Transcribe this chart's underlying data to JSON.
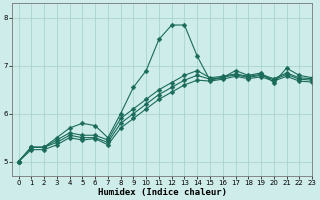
{
  "xlabel": "Humidex (Indice chaleur)",
  "bg_color": "#ceecea",
  "grid_color": "#a8d5d0",
  "line_color": "#1a6b5a",
  "xlim": [
    -0.5,
    23
  ],
  "ylim": [
    4.7,
    8.3
  ],
  "yticks": [
    5,
    6,
    7,
    8
  ],
  "xticks": [
    0,
    1,
    2,
    3,
    4,
    5,
    6,
    7,
    8,
    9,
    10,
    11,
    12,
    13,
    14,
    15,
    16,
    17,
    18,
    19,
    20,
    21,
    22,
    23
  ],
  "series": [
    [
      5.0,
      5.3,
      5.3,
      5.5,
      5.7,
      5.8,
      5.75,
      5.5,
      6.0,
      6.55,
      6.9,
      7.55,
      7.85,
      7.85,
      7.2,
      6.7,
      6.75,
      6.9,
      6.8,
      6.85,
      6.65,
      6.95,
      6.8,
      6.75
    ],
    [
      5.0,
      5.3,
      5.3,
      5.45,
      5.6,
      5.55,
      5.55,
      5.45,
      5.9,
      6.1,
      6.3,
      6.5,
      6.65,
      6.8,
      6.9,
      6.75,
      6.78,
      6.83,
      6.78,
      6.82,
      6.73,
      6.85,
      6.75,
      6.73
    ],
    [
      5.0,
      5.3,
      5.3,
      5.4,
      5.55,
      5.5,
      5.5,
      5.4,
      5.8,
      6.0,
      6.2,
      6.4,
      6.55,
      6.7,
      6.8,
      6.72,
      6.76,
      6.81,
      6.76,
      6.8,
      6.71,
      6.82,
      6.72,
      6.7
    ],
    [
      5.0,
      5.25,
      5.25,
      5.35,
      5.5,
      5.45,
      5.48,
      5.35,
      5.7,
      5.9,
      6.1,
      6.3,
      6.45,
      6.6,
      6.7,
      6.68,
      6.72,
      6.78,
      6.73,
      6.77,
      6.68,
      6.78,
      6.68,
      6.66
    ]
  ],
  "markersize": 2.5,
  "linewidth": 0.8
}
